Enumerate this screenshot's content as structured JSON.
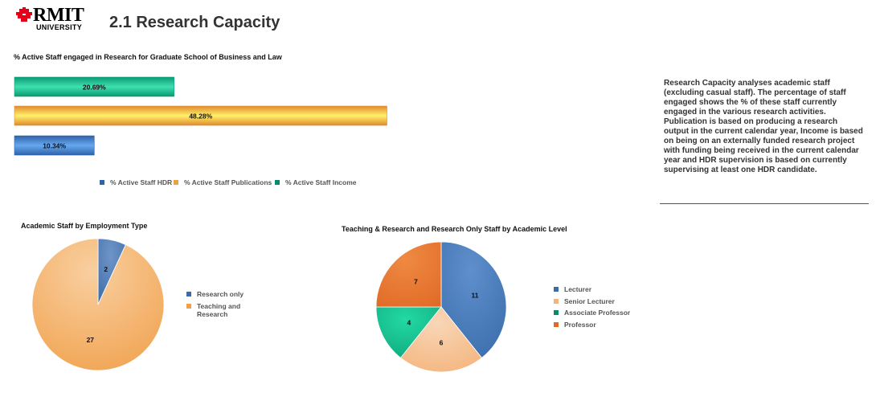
{
  "header": {
    "logo_text": "RMIT",
    "logo_subtext": "UNIVERSITY",
    "title": "2.1 Research Capacity"
  },
  "description": "Research Capacity analyses academic staff (excluding casual staff). The percentage of staff engaged shows the % of these staff currently engaged in the various research activities. Publication is based on producing a research output in the current calendar year, Income is based on being on an externally funded research project with funding being received in the current calendar year and HDR supervision is based on currently supervising at least one HDR candidate.",
  "chart_data": [
    {
      "id": "bar",
      "type": "bar",
      "orientation": "horizontal",
      "title": "% Active Staff engaged in Research for Graduate School of Business and Law",
      "series": [
        {
          "name": "% Active Staff Income",
          "value": 20.69,
          "label": "20.69%",
          "color": "#0a9a73",
          "highlight": "#3fe0b0"
        },
        {
          "name": "% Active Staff Publications",
          "value": 48.28,
          "label": "48.28%",
          "color": "#e08a2e",
          "highlight": "#fff06a"
        },
        {
          "name": "% Active Staff HDR",
          "value": 10.34,
          "label": "10.34%",
          "color": "#2f62a8",
          "highlight": "#66a8f0"
        }
      ],
      "legend": [
        {
          "name": "% Active Staff HDR",
          "color": "#2f62a8"
        },
        {
          "name": "% Active Staff Publications",
          "color": "#e8a24a"
        },
        {
          "name": "% Active Staff Income",
          "color": "#0a8a68"
        }
      ],
      "legend_position": "bottom",
      "xlim": [
        0,
        100
      ],
      "grid": false
    },
    {
      "id": "pie1",
      "type": "pie",
      "title": "Academic Staff by Employment Type",
      "slices": [
        {
          "name": "Research only",
          "value": 2,
          "label": "2",
          "color": "#3b6aa6",
          "light": "#6f95c8"
        },
        {
          "name": "Teaching and Research",
          "value": 27,
          "label": "27",
          "color": "#f0a04b",
          "light": "#f9cfa0"
        }
      ],
      "legend": [
        {
          "name": "Research only",
          "color": "#3b6aa6"
        },
        {
          "name": "Teaching and Research",
          "color": "#f0a04b"
        }
      ],
      "legend_position": "right"
    },
    {
      "id": "pie2",
      "type": "pie",
      "title": "Teaching & Research and Research Only Staff by Academic Level",
      "slices": [
        {
          "name": "Lecturer",
          "value": 11,
          "label": "11",
          "color": "#3a6cab",
          "light": "#5f8fcc"
        },
        {
          "name": "Senior Lecturer",
          "value": 6,
          "label": "6",
          "color": "#f4b37a",
          "light": "#f8d6b6"
        },
        {
          "name": "Associate Professor",
          "value": 4,
          "label": "4",
          "color": "#0fa67a",
          "light": "#22d9a4"
        },
        {
          "name": "Professor",
          "value": 7,
          "label": "7",
          "color": "#e06a26",
          "light": "#ef8a42"
        }
      ],
      "legend": [
        {
          "name": "Lecturer",
          "color": "#3a6cab"
        },
        {
          "name": "Senior Lecturer",
          "color": "#f4b37a"
        },
        {
          "name": "Associate Professor",
          "color": "#0a8a68"
        },
        {
          "name": "Professor",
          "color": "#e06a26"
        }
      ],
      "legend_position": "right"
    }
  ]
}
